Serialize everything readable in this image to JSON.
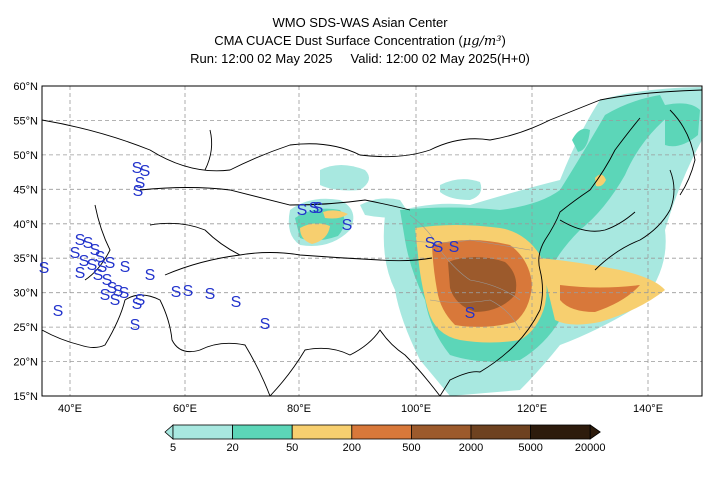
{
  "header": {
    "line1": "WMO SDS-WAS Asian Center",
    "line2_prefix": "CMA CUACE Dust Surface Concentration (",
    "line2_unit": "μg/m³",
    "line2_suffix": ")",
    "run": "Run: 12:00 02 May 2025",
    "valid": "Valid: 12:00 02 May 2025(H+0)"
  },
  "map": {
    "lat_labels": [
      "60°N",
      "55°N",
      "50°N",
      "45°N",
      "40°N",
      "35°N",
      "30°N",
      "25°N",
      "20°N",
      "15°N"
    ],
    "lon_labels": [
      "40°E",
      "60°E",
      "80°E",
      "100°E",
      "120°E",
      "140°E"
    ],
    "storm_symbol": "S"
  },
  "colorbar": {
    "labels": [
      "5",
      "20",
      "50",
      "200",
      "500",
      "2000",
      "5000",
      "20000"
    ],
    "colors": [
      "#a8e8e0",
      "#5cd6b8",
      "#f7cf6f",
      "#d8783a",
      "#9c5a2c",
      "#6e4220",
      "#2d1b0c"
    ]
  }
}
